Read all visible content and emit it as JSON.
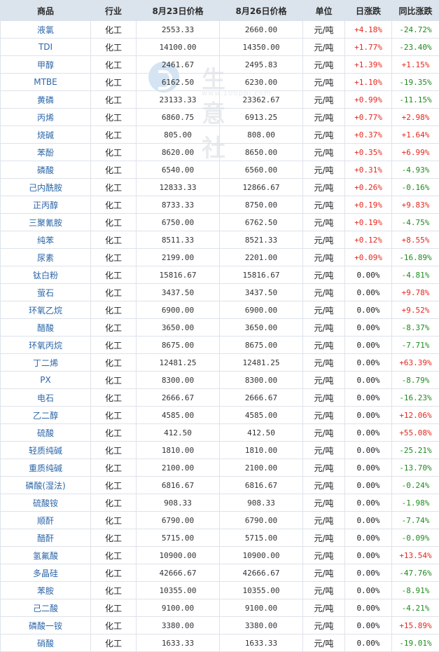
{
  "watermark": {
    "text": "生意社",
    "url": "www.100ppi.com"
  },
  "table": {
    "headers": [
      "商品",
      "行业",
      "8月23日价格",
      "8月26日价格",
      "单位",
      "日涨跌",
      "同比涨跌"
    ],
    "rows": [
      {
        "name": "液氯",
        "industry": "化工",
        "price1": "2553.33",
        "price2": "2660.00",
        "unit": "元/吨",
        "day": "+4.18%",
        "yoy": "-24.72%"
      },
      {
        "name": "TDI",
        "industry": "化工",
        "price1": "14100.00",
        "price2": "14350.00",
        "unit": "元/吨",
        "day": "+1.77%",
        "yoy": "-23.40%"
      },
      {
        "name": "甲醇",
        "industry": "化工",
        "price1": "2461.67",
        "price2": "2495.83",
        "unit": "元/吨",
        "day": "+1.39%",
        "yoy": "+1.15%"
      },
      {
        "name": "MTBE",
        "industry": "化工",
        "price1": "6162.50",
        "price2": "6230.00",
        "unit": "元/吨",
        "day": "+1.10%",
        "yoy": "-19.35%"
      },
      {
        "name": "黄磷",
        "industry": "化工",
        "price1": "23133.33",
        "price2": "23362.67",
        "unit": "元/吨",
        "day": "+0.99%",
        "yoy": "-11.15%"
      },
      {
        "name": "丙烯",
        "industry": "化工",
        "price1": "6860.75",
        "price2": "6913.25",
        "unit": "元/吨",
        "day": "+0.77%",
        "yoy": "+2.98%"
      },
      {
        "name": "烧碱",
        "industry": "化工",
        "price1": "805.00",
        "price2": "808.00",
        "unit": "元/吨",
        "day": "+0.37%",
        "yoy": "+1.64%"
      },
      {
        "name": "苯酚",
        "industry": "化工",
        "price1": "8620.00",
        "price2": "8650.00",
        "unit": "元/吨",
        "day": "+0.35%",
        "yoy": "+6.99%"
      },
      {
        "name": "磷酸",
        "industry": "化工",
        "price1": "6540.00",
        "price2": "6560.00",
        "unit": "元/吨",
        "day": "+0.31%",
        "yoy": "-4.93%"
      },
      {
        "name": "己内酰胺",
        "industry": "化工",
        "price1": "12833.33",
        "price2": "12866.67",
        "unit": "元/吨",
        "day": "+0.26%",
        "yoy": "-0.16%"
      },
      {
        "name": "正丙醇",
        "industry": "化工",
        "price1": "8733.33",
        "price2": "8750.00",
        "unit": "元/吨",
        "day": "+0.19%",
        "yoy": "+9.83%"
      },
      {
        "name": "三聚氰胺",
        "industry": "化工",
        "price1": "6750.00",
        "price2": "6762.50",
        "unit": "元/吨",
        "day": "+0.19%",
        "yoy": "-4.75%"
      },
      {
        "name": "纯苯",
        "industry": "化工",
        "price1": "8511.33",
        "price2": "8521.33",
        "unit": "元/吨",
        "day": "+0.12%",
        "yoy": "+8.55%"
      },
      {
        "name": "尿素",
        "industry": "化工",
        "price1": "2199.00",
        "price2": "2201.00",
        "unit": "元/吨",
        "day": "+0.09%",
        "yoy": "-16.89%"
      },
      {
        "name": "钛白粉",
        "industry": "化工",
        "price1": "15816.67",
        "price2": "15816.67",
        "unit": "元/吨",
        "day": "0.00%",
        "yoy": "-4.81%"
      },
      {
        "name": "萤石",
        "industry": "化工",
        "price1": "3437.50",
        "price2": "3437.50",
        "unit": "元/吨",
        "day": "0.00%",
        "yoy": "+9.78%"
      },
      {
        "name": "环氧乙烷",
        "industry": "化工",
        "price1": "6900.00",
        "price2": "6900.00",
        "unit": "元/吨",
        "day": "0.00%",
        "yoy": "+9.52%"
      },
      {
        "name": "醋酸",
        "industry": "化工",
        "price1": "3650.00",
        "price2": "3650.00",
        "unit": "元/吨",
        "day": "0.00%",
        "yoy": "-8.37%"
      },
      {
        "name": "环氧丙烷",
        "industry": "化工",
        "price1": "8675.00",
        "price2": "8675.00",
        "unit": "元/吨",
        "day": "0.00%",
        "yoy": "-7.71%"
      },
      {
        "name": "丁二烯",
        "industry": "化工",
        "price1": "12481.25",
        "price2": "12481.25",
        "unit": "元/吨",
        "day": "0.00%",
        "yoy": "+63.39%"
      },
      {
        "name": "PX",
        "industry": "化工",
        "price1": "8300.00",
        "price2": "8300.00",
        "unit": "元/吨",
        "day": "0.00%",
        "yoy": "-8.79%"
      },
      {
        "name": "电石",
        "industry": "化工",
        "price1": "2666.67",
        "price2": "2666.67",
        "unit": "元/吨",
        "day": "0.00%",
        "yoy": "-16.23%"
      },
      {
        "name": "乙二醇",
        "industry": "化工",
        "price1": "4585.00",
        "price2": "4585.00",
        "unit": "元/吨",
        "day": "0.00%",
        "yoy": "+12.06%"
      },
      {
        "name": "硫酸",
        "industry": "化工",
        "price1": "412.50",
        "price2": "412.50",
        "unit": "元/吨",
        "day": "0.00%",
        "yoy": "+55.08%"
      },
      {
        "name": "轻质纯碱",
        "industry": "化工",
        "price1": "1810.00",
        "price2": "1810.00",
        "unit": "元/吨",
        "day": "0.00%",
        "yoy": "-25.21%"
      },
      {
        "name": "重质纯碱",
        "industry": "化工",
        "price1": "2100.00",
        "price2": "2100.00",
        "unit": "元/吨",
        "day": "0.00%",
        "yoy": "-13.70%"
      },
      {
        "name": "磷酸(湿法)",
        "industry": "化工",
        "price1": "6816.67",
        "price2": "6816.67",
        "unit": "元/吨",
        "day": "0.00%",
        "yoy": "-0.24%"
      },
      {
        "name": "硫酸铵",
        "industry": "化工",
        "price1": "908.33",
        "price2": "908.33",
        "unit": "元/吨",
        "day": "0.00%",
        "yoy": "-1.98%"
      },
      {
        "name": "顺酐",
        "industry": "化工",
        "price1": "6790.00",
        "price2": "6790.00",
        "unit": "元/吨",
        "day": "0.00%",
        "yoy": "-7.74%"
      },
      {
        "name": "醋酐",
        "industry": "化工",
        "price1": "5715.00",
        "price2": "5715.00",
        "unit": "元/吨",
        "day": "0.00%",
        "yoy": "-0.09%"
      },
      {
        "name": "氢氟酸",
        "industry": "化工",
        "price1": "10900.00",
        "price2": "10900.00",
        "unit": "元/吨",
        "day": "0.00%",
        "yoy": "+13.54%"
      },
      {
        "name": "多晶硅",
        "industry": "化工",
        "price1": "42666.67",
        "price2": "42666.67",
        "unit": "元/吨",
        "day": "0.00%",
        "yoy": "-47.76%"
      },
      {
        "name": "苯胺",
        "industry": "化工",
        "price1": "10355.00",
        "price2": "10355.00",
        "unit": "元/吨",
        "day": "0.00%",
        "yoy": "-8.91%"
      },
      {
        "name": "己二酸",
        "industry": "化工",
        "price1": "9100.00",
        "price2": "9100.00",
        "unit": "元/吨",
        "day": "0.00%",
        "yoy": "-4.21%"
      },
      {
        "name": "磷酸一铵",
        "industry": "化工",
        "price1": "3380.00",
        "price2": "3380.00",
        "unit": "元/吨",
        "day": "0.00%",
        "yoy": "+15.89%"
      },
      {
        "name": "硝酸",
        "industry": "化工",
        "price1": "1633.33",
        "price2": "1633.33",
        "unit": "元/吨",
        "day": "0.00%",
        "yoy": "-19.01%"
      }
    ]
  },
  "colors": {
    "up": "#e3281e",
    "down": "#1f8a1f",
    "name_link": "#2c66a8",
    "header_bg": "#dbe3ec"
  }
}
